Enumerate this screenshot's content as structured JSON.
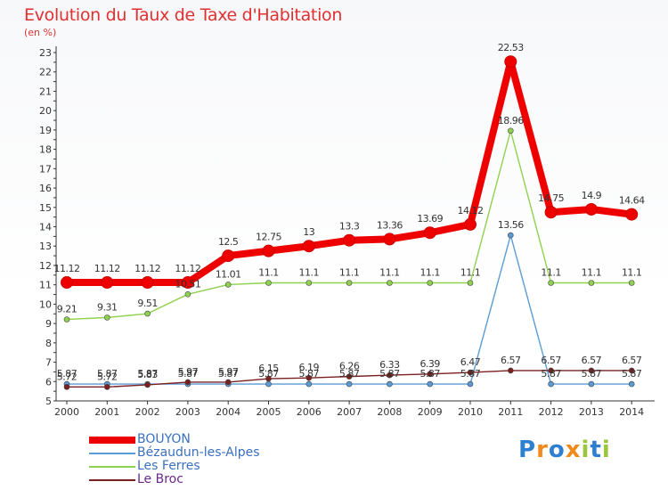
{
  "title": "Evolution du Taux de Taxe d'Habitation",
  "subtitle": "(en %)",
  "brand": "Proxiti",
  "chart_data": {
    "type": "line",
    "title": "Evolution du Taux de Taxe d'Habitation",
    "ylabel": "(en %)",
    "xlabel": "",
    "ylim": [
      5,
      23
    ],
    "yticks": [
      5,
      6,
      7,
      8,
      9,
      10,
      11,
      12,
      13,
      14,
      15,
      16,
      17,
      18,
      19,
      20,
      21,
      22,
      23
    ],
    "categories": [
      "2000",
      "2001",
      "2002",
      "2003",
      "2004",
      "2005",
      "2006",
      "2007",
      "2008",
      "2009",
      "2010",
      "2011",
      "2012",
      "2013",
      "2014"
    ],
    "grid": false,
    "legend_position": "bottom-left",
    "series": [
      {
        "name": "BOUYON",
        "color": "#ee0000",
        "values": [
          11.12,
          11.12,
          11.12,
          11.12,
          12.5,
          12.75,
          13,
          13.3,
          13.36,
          13.69,
          14.12,
          22.53,
          14.75,
          14.9,
          14.64
        ],
        "labels": [
          "11.12",
          "11.12",
          "11.12",
          "11.12",
          "12.5",
          "12.75",
          "13",
          "13.3",
          "13.36",
          "13.69",
          "14.12",
          "22.53",
          "14.75",
          "14.9",
          "14.64"
        ]
      },
      {
        "name": "Bézaudun-les-Alpes",
        "color": "#5b9bd5",
        "values": [
          5.87,
          5.87,
          5.87,
          5.87,
          5.87,
          5.87,
          5.87,
          5.87,
          5.87,
          5.87,
          5.87,
          13.56,
          5.87,
          5.87,
          5.87
        ],
        "labels": [
          "5.87",
          "5.87",
          "5.87",
          "5.87",
          "5.87",
          "5.87",
          "5.87",
          "5.87",
          "5.87",
          "5.87",
          "5.87",
          "13.56",
          "5.87",
          "5.87",
          "5.87"
        ]
      },
      {
        "name": "Les Ferres",
        "color": "#8fd14f",
        "values": [
          9.21,
          9.31,
          9.51,
          10.51,
          11.01,
          11.1,
          11.1,
          11.1,
          11.1,
          11.1,
          11.1,
          18.96,
          11.1,
          11.1,
          11.1
        ],
        "labels": [
          "9.21",
          "9.31",
          "9.51",
          "10.51",
          "11.01",
          "11.1",
          "11.1",
          "11.1",
          "11.1",
          "11.1",
          "11.1",
          "18.96",
          "11.1",
          "11.1",
          "11.1"
        ]
      },
      {
        "name": "Le Broc",
        "color": "#7a2020",
        "values": [
          5.72,
          5.72,
          5.83,
          5.97,
          5.97,
          6.15,
          6.19,
          6.26,
          6.33,
          6.39,
          6.47,
          6.57,
          6.57,
          6.57,
          6.57
        ],
        "labels": [
          "5.72",
          "5.72",
          "5.83",
          "5.97",
          "5.97",
          "6.15",
          "6.19",
          "6.26",
          "6.33",
          "6.39",
          "6.47",
          "6.57",
          "6.57",
          "6.57",
          "6.57"
        ]
      }
    ]
  }
}
